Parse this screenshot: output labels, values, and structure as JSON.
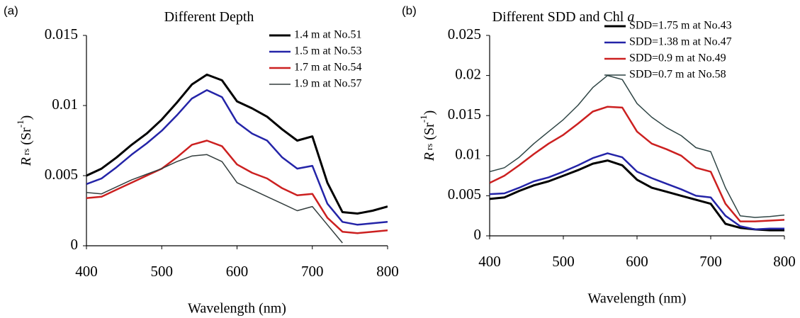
{
  "chart_data": [
    {
      "type": "line",
      "panel_label": "(a)",
      "title": "Different Depth",
      "x_label": "Wavelength (nm)",
      "y_label": [
        "R",
        "rs",
        "(Sr",
        "-1",
        ")"
      ],
      "x": [
        400,
        420,
        440,
        460,
        480,
        500,
        520,
        540,
        560,
        580,
        600,
        620,
        640,
        660,
        680,
        700,
        720,
        740,
        760,
        780,
        800
      ],
      "xlim": [
        400,
        800
      ],
      "xticks": [
        400,
        500,
        600,
        700,
        800
      ],
      "ylim": [
        0,
        0.015
      ],
      "yticks": [
        0,
        0.005,
        0.01,
        0.015
      ],
      "series": [
        {
          "name": "1.4 m at No.51",
          "color": "#000000",
          "width": 3,
          "values": [
            0.005,
            0.0055,
            0.0063,
            0.0072,
            0.008,
            0.009,
            0.0102,
            0.0115,
            0.0122,
            0.0118,
            0.0103,
            0.0098,
            0.0092,
            0.0083,
            0.0075,
            0.0078,
            0.0045,
            0.0024,
            0.0023,
            0.0025,
            0.0028
          ]
        },
        {
          "name": "1.5 m at No.53",
          "color": "#2424a8",
          "width": 2.5,
          "values": [
            0.0044,
            0.0048,
            0.0056,
            0.0065,
            0.0073,
            0.0082,
            0.0093,
            0.0105,
            0.0111,
            0.0106,
            0.0088,
            0.008,
            0.0075,
            0.0063,
            0.0055,
            0.0057,
            0.003,
            0.0017,
            0.0015,
            0.0016,
            0.0017
          ]
        },
        {
          "name": "1.7 m at No.54",
          "color": "#cc2020",
          "width": 2.5,
          "values": [
            0.0034,
            0.0035,
            0.004,
            0.0045,
            0.005,
            0.0055,
            0.0063,
            0.0072,
            0.0075,
            0.0071,
            0.0058,
            0.0052,
            0.0048,
            0.0041,
            0.0036,
            0.0037,
            0.002,
            0.001,
            0.0009,
            0.001,
            0.0011
          ]
        },
        {
          "name": "1.9 m at No.57",
          "color": "#333d3d",
          "width": 1.5,
          "values": [
            0.0038,
            0.0037,
            0.0042,
            0.0047,
            0.0051,
            0.0055,
            0.006,
            0.0064,
            0.0065,
            0.006,
            0.0045,
            0.004,
            0.0035,
            0.003,
            0.0025,
            0.0028,
            0.0015,
            0.0002,
            null,
            null,
            null
          ]
        }
      ]
    },
    {
      "type": "line",
      "panel_label": "(b)",
      "title": "Different SDD and Chl",
      "title_italic": "a",
      "x_label": "Wavelength (nm)",
      "y_label": [
        "R",
        "rs",
        "(Sr",
        "-1",
        ")"
      ],
      "x": [
        400,
        420,
        440,
        460,
        480,
        500,
        520,
        540,
        560,
        580,
        600,
        620,
        640,
        660,
        680,
        700,
        720,
        740,
        760,
        780,
        800
      ],
      "xlim": [
        400,
        800
      ],
      "xticks": [
        400,
        500,
        600,
        700,
        800
      ],
      "ylim": [
        0,
        0.025
      ],
      "yticks": [
        0,
        0.005,
        0.01,
        0.015,
        0.02,
        0.025
      ],
      "series": [
        {
          "name": "SDD=1.75 m at No.43",
          "color": "#000000",
          "width": 3,
          "values": [
            0.0046,
            0.0048,
            0.0056,
            0.0063,
            0.0068,
            0.0075,
            0.0082,
            0.009,
            0.0094,
            0.0088,
            0.007,
            0.006,
            0.0055,
            0.005,
            0.0045,
            0.004,
            0.0015,
            0.001,
            0.0008,
            0.0007,
            0.0007
          ]
        },
        {
          "name": "SDD=1.38 m at No.47",
          "color": "#2424a8",
          "width": 2.5,
          "values": [
            0.0052,
            0.0053,
            0.006,
            0.0068,
            0.0073,
            0.008,
            0.0088,
            0.0097,
            0.0103,
            0.0098,
            0.008,
            0.0072,
            0.0065,
            0.0058,
            0.005,
            0.0048,
            0.0025,
            0.0012,
            0.0008,
            0.0009,
            0.0009
          ]
        },
        {
          "name": "SDD=0.9 m at No.49",
          "color": "#cc2020",
          "width": 2.5,
          "values": [
            0.0066,
            0.0075,
            0.0088,
            0.0102,
            0.0115,
            0.0126,
            0.014,
            0.0155,
            0.0161,
            0.016,
            0.013,
            0.0115,
            0.0108,
            0.01,
            0.0085,
            0.008,
            0.004,
            0.0018,
            0.0018,
            0.0019,
            0.002
          ]
        },
        {
          "name": "SDD=0.7 m at No.58",
          "color": "#2f4545",
          "width": 1.5,
          "values": [
            0.008,
            0.0085,
            0.0098,
            0.0115,
            0.013,
            0.0145,
            0.0163,
            0.0185,
            0.02,
            0.0195,
            0.0165,
            0.0148,
            0.0135,
            0.0125,
            0.011,
            0.0105,
            0.006,
            0.0025,
            0.0023,
            0.0024,
            0.0026
          ]
        }
      ]
    }
  ]
}
